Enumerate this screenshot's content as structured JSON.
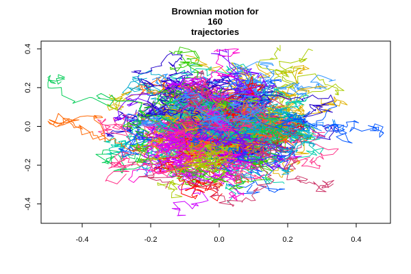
{
  "chart_data": {
    "type": "line",
    "title_lines": [
      "Brownian motion for",
      "160",
      "trajectories"
    ],
    "xlabel": "",
    "ylabel": "",
    "xlim": [
      -0.52,
      0.5
    ],
    "ylim": [
      -0.5,
      0.44
    ],
    "x_ticks": [
      -0.4,
      -0.2,
      0.0,
      0.2,
      0.4
    ],
    "x_tick_labels": [
      "-0.4",
      "-0.2",
      "0.0",
      "0.2",
      "0.4"
    ],
    "y_ticks": [
      -0.4,
      -0.2,
      0.0,
      0.2,
      0.4
    ],
    "y_tick_labels": [
      "-0.4",
      "-0.2",
      "0.0",
      "0.2",
      "0.4"
    ],
    "grid": false,
    "legend": "none",
    "trajectory_count": 160,
    "steps_per_trajectory": 100,
    "step_sd": 0.0175,
    "seed": 160,
    "palette": [
      "#FF0000",
      "#FF6600",
      "#E0B000",
      "#AACC00",
      "#33CC00",
      "#00CC55",
      "#00CCAA",
      "#00AACC",
      "#0055FF",
      "#2200CC",
      "#7700FF",
      "#CC00FF",
      "#FF00CC",
      "#FF3388",
      "#CC3366",
      "#3399FF"
    ]
  }
}
